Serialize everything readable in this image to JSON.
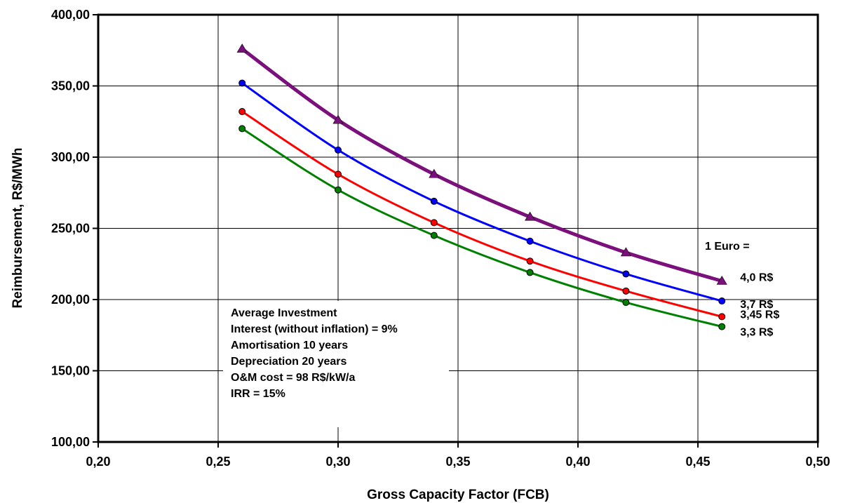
{
  "chart_data": {
    "type": "line",
    "xlabel": "Gross Capacity Factor (FCB)",
    "ylabel": "Reimbursement, R$/MWh",
    "xlim": [
      0.2,
      0.5
    ],
    "ylim": [
      100,
      400
    ],
    "x_ticks": [
      "0,20",
      "0,25",
      "0,30",
      "0,35",
      "0,40",
      "0,45",
      "0,50"
    ],
    "y_ticks": [
      "100,00",
      "150,00",
      "200,00",
      "250,00",
      "300,00",
      "350,00",
      "400,00"
    ],
    "grid": true,
    "x": [
      0.26,
      0.3,
      0.34,
      0.38,
      0.42,
      0.46
    ],
    "series": [
      {
        "name": "4,0 R$",
        "color": "#7b0f7b",
        "marker": "triangle",
        "values": [
          376,
          326,
          288,
          258,
          233,
          213
        ]
      },
      {
        "name": "3,7 R$",
        "color": "#0000ff",
        "marker": "circle",
        "values": [
          352,
          305,
          269,
          241,
          218,
          199
        ]
      },
      {
        "name": "3,45 R$",
        "color": "#ff0000",
        "marker": "circle",
        "values": [
          332,
          288,
          254,
          227,
          206,
          188
        ]
      },
      {
        "name": "3,3 R$",
        "color": "#008000",
        "marker": "circle",
        "values": [
          320,
          277,
          245,
          219,
          198,
          181
        ]
      }
    ],
    "legend_title": "1 Euro =",
    "annotation_lines": [
      "Average Investment",
      "Interest (without inflation) = 9%",
      "Amortisation 10 years",
      "Depreciation 20 years",
      "O&M cost = 98 R$/kW/a",
      "IRR = 15%"
    ]
  }
}
